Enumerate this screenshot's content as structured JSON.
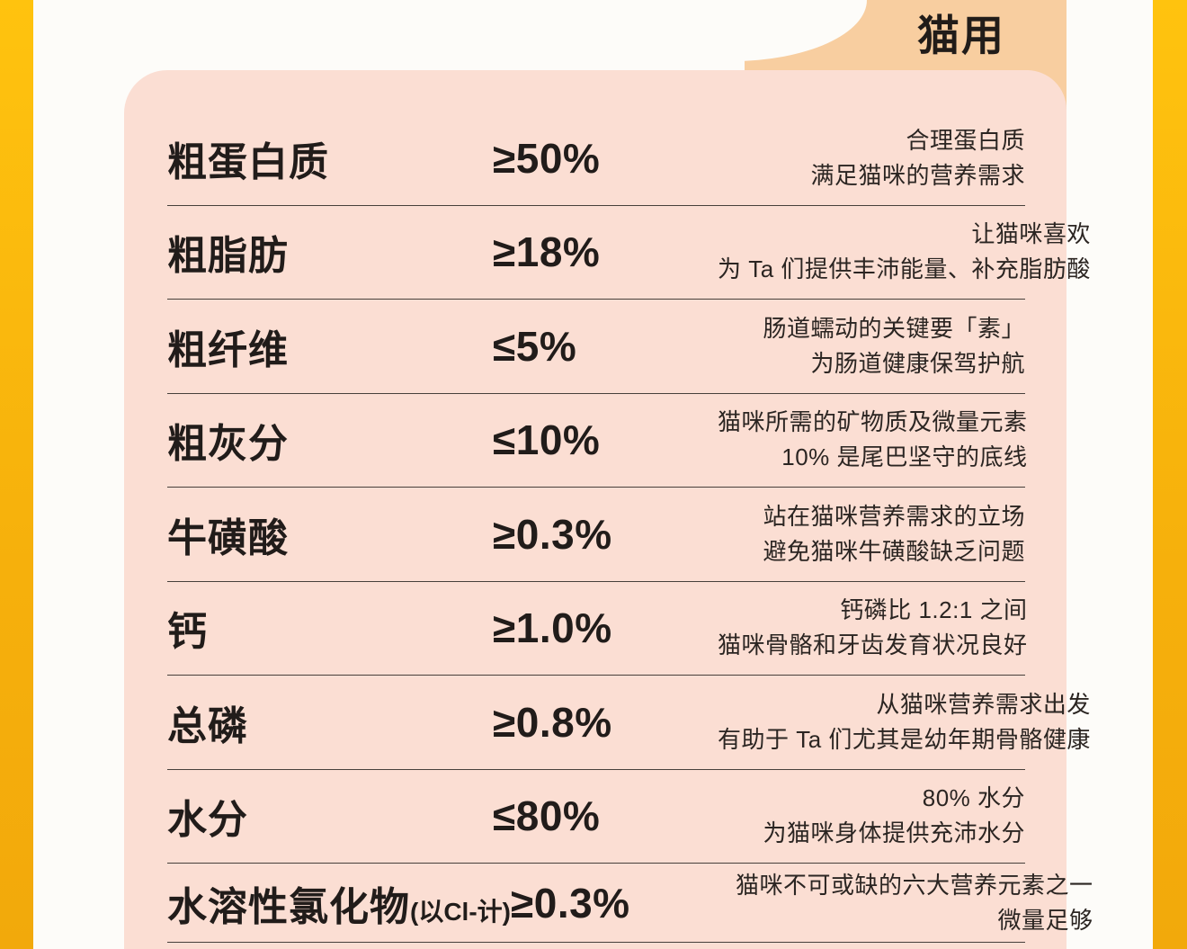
{
  "header": {
    "tab_label": "猫用"
  },
  "colors": {
    "edge_stripe_yellow": "#f6b00c",
    "card_pink": "#fbded3",
    "tab_orange": "#f8cea0",
    "text_dark": "#211c1a",
    "divider": "#47403b"
  },
  "table": {
    "rows": [
      {
        "name": "粗蛋白质",
        "suffix": "",
        "value": "≥50%",
        "desc1": "合理蛋白质",
        "desc2": "满足猫咪的营养需求"
      },
      {
        "name": "粗脂肪",
        "suffix": "",
        "value": "≥18%",
        "desc1": "让猫咪喜欢",
        "desc2": "为 Ta 们提供丰沛能量、补充脂肪酸"
      },
      {
        "name": "粗纤维",
        "suffix": "",
        "value": "≤5%",
        "desc1": "肠道蠕动的关键要「素」",
        "desc2": "为肠道健康保驾护航"
      },
      {
        "name": "粗灰分",
        "suffix": "",
        "value": "≤10%",
        "desc1": "猫咪所需的矿物质及微量元素",
        "desc2": "10% 是尾巴坚守的底线"
      },
      {
        "name": "牛磺酸",
        "suffix": "",
        "value": "≥0.3%",
        "desc1": "站在猫咪营养需求的立场",
        "desc2": "避免猫咪牛磺酸缺乏问题"
      },
      {
        "name": "钙",
        "suffix": "",
        "value": "≥1.0%",
        "desc1": "钙磷比 1.2:1 之间",
        "desc2": "猫咪骨骼和牙齿发育状况良好"
      },
      {
        "name": "总磷",
        "suffix": "",
        "value": "≥0.8%",
        "desc1": "从猫咪营养需求出发",
        "desc2": "有助于 Ta 们尤其是幼年期骨骼健康"
      },
      {
        "name": "水分",
        "suffix": "",
        "value": "≤80%",
        "desc1": "80% 水分",
        "desc2": "为猫咪身体提供充沛水分"
      },
      {
        "name": "水溶性氯化物",
        "suffix": "(以Cl-计)",
        "value": "≥0.3%",
        "desc1": "猫咪不可或缺的六大营养元素之一",
        "desc2": "微量足够"
      }
    ]
  }
}
